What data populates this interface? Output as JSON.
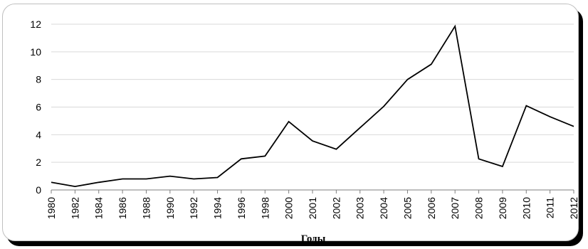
{
  "chart_data": {
    "type": "line",
    "title": "",
    "xlabel": "Годы",
    "ylabel": "",
    "ylim": [
      0,
      12
    ],
    "yticks": [
      "0",
      "2",
      "4",
      "6",
      "8",
      "10",
      "12"
    ],
    "grid": true,
    "legend": "none",
    "categories": [
      "1980",
      "1982",
      "1984",
      "1986",
      "1988",
      "1990",
      "1992",
      "1994",
      "1996",
      "1998",
      "2000",
      "2001",
      "2002",
      "2003",
      "2004",
      "2005",
      "2006",
      "2007",
      "2008",
      "2009",
      "2010",
      "2011",
      "2012"
    ],
    "series": [
      {
        "values": [
          0.55,
          0.25,
          0.55,
          0.8,
          0.8,
          1.0,
          0.8,
          0.9,
          2.25,
          2.45,
          4.95,
          3.55,
          2.95,
          4.5,
          6.05,
          8.0,
          9.1,
          11.85,
          2.25,
          1.7,
          6.1,
          5.3,
          4.6
        ],
        "color": "#000000"
      }
    ],
    "colors": {
      "line": "#000000",
      "grid": "#d9d9d9",
      "axis": "#7f7f7f"
    }
  }
}
